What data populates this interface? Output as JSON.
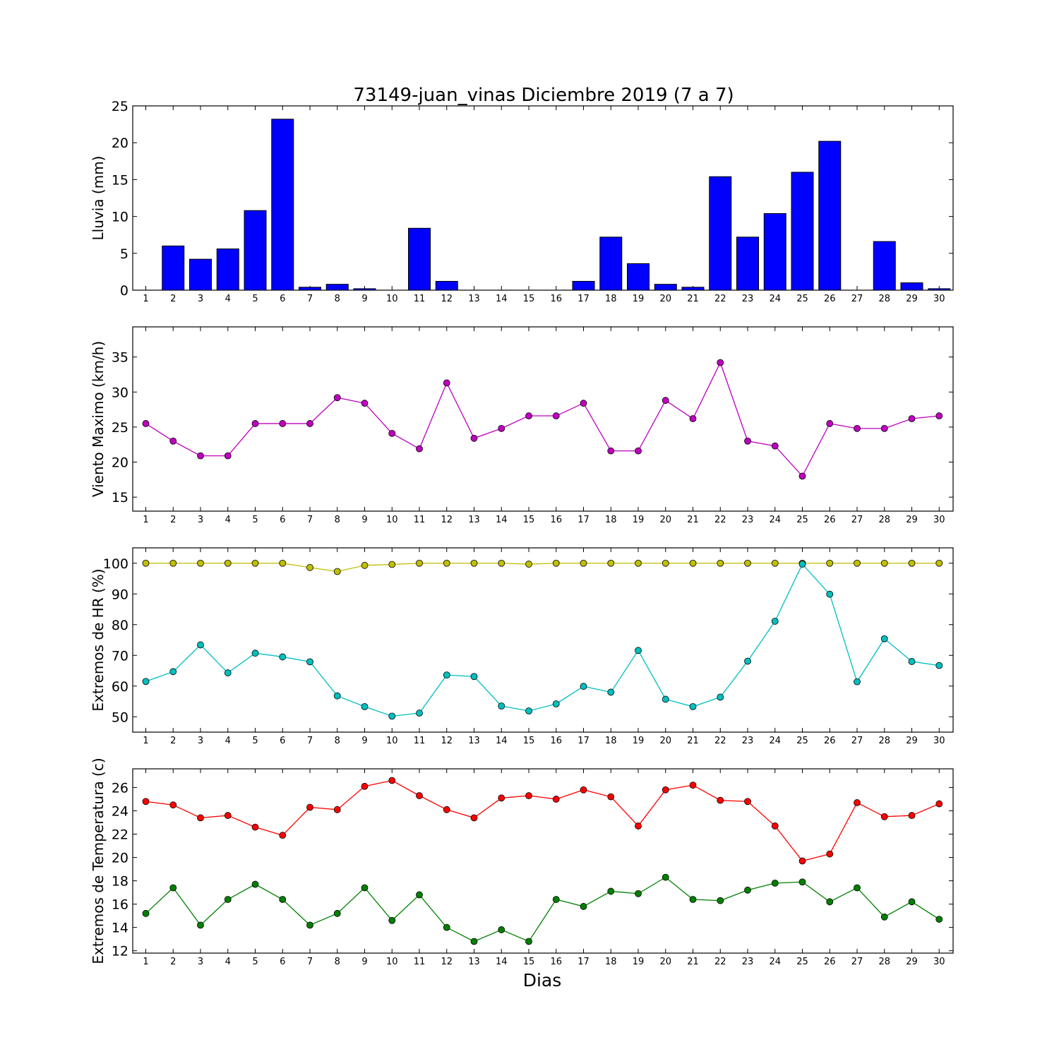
{
  "title": "73149-juan_vinas Diciembre 2019  (7 a 7)",
  "xlabel": "Dias",
  "chart_data": [
    {
      "type": "bar",
      "ylabel": "Lluvia (mm)",
      "categories": [
        "1",
        "2",
        "3",
        "4",
        "5",
        "6",
        "7",
        "8",
        "9",
        "10",
        "11",
        "12",
        "13",
        "14",
        "15",
        "16",
        "17",
        "18",
        "19",
        "20",
        "21",
        "22",
        "23",
        "24",
        "25",
        "26",
        "27",
        "28",
        "29",
        "30"
      ],
      "ylim": [
        0,
        25
      ],
      "yticks": [
        0,
        5,
        10,
        15,
        20,
        25
      ],
      "series": [
        {
          "color": "#0000ff",
          "values": [
            0,
            6.0,
            4.2,
            5.6,
            10.8,
            23.2,
            0.4,
            0.8,
            0.2,
            0,
            8.4,
            1.2,
            0,
            0,
            0,
            0,
            1.2,
            7.2,
            3.6,
            0.8,
            0.4,
            15.4,
            7.2,
            10.4,
            16.0,
            20.2,
            0,
            6.6,
            1.0,
            0.2
          ]
        }
      ]
    },
    {
      "type": "line",
      "ylabel": "Viento Maximo (km/h)",
      "categories": [
        "1",
        "2",
        "3",
        "4",
        "5",
        "6",
        "7",
        "8",
        "9",
        "10",
        "11",
        "12",
        "13",
        "14",
        "15",
        "16",
        "17",
        "18",
        "19",
        "20",
        "21",
        "22",
        "23",
        "24",
        "25",
        "26",
        "27",
        "28",
        "29",
        "30"
      ],
      "ylim": [
        13,
        39.3
      ],
      "yticks": [
        15,
        20,
        25,
        30,
        35
      ],
      "series": [
        {
          "color": "#bf00bf",
          "values": [
            25.5,
            23.0,
            20.9,
            20.9,
            25.5,
            25.5,
            25.5,
            29.2,
            28.4,
            24.1,
            21.9,
            31.3,
            23.4,
            24.8,
            26.6,
            26.6,
            28.4,
            21.6,
            21.6,
            28.8,
            26.2,
            34.2,
            23.0,
            22.3,
            18.0,
            25.5,
            24.8,
            24.8,
            26.2,
            26.6
          ]
        }
      ]
    },
    {
      "type": "line",
      "ylabel": "Extremos de HR (%)",
      "categories": [
        "1",
        "2",
        "3",
        "4",
        "5",
        "6",
        "7",
        "8",
        "9",
        "10",
        "11",
        "12",
        "13",
        "14",
        "15",
        "16",
        "17",
        "18",
        "19",
        "20",
        "21",
        "22",
        "23",
        "24",
        "25",
        "26",
        "27",
        "28",
        "29",
        "30"
      ],
      "ylim": [
        45,
        105
      ],
      "yticks": [
        50,
        60,
        70,
        80,
        90,
        100
      ],
      "series": [
        {
          "color": "#bfbf00",
          "values": [
            100,
            100,
            100,
            100,
            100,
            100,
            98.6,
            97.3,
            99.3,
            99.6,
            100,
            100,
            100,
            100,
            99.7,
            100,
            100,
            100,
            100,
            100,
            100,
            100,
            100,
            100,
            100,
            100,
            100,
            100,
            100,
            100
          ]
        },
        {
          "color": "#00bfbf",
          "values": [
            61.5,
            64.7,
            73.4,
            64.3,
            70.7,
            69.5,
            67.9,
            56.8,
            53.3,
            50.2,
            51.2,
            63.6,
            63.1,
            53.5,
            51.9,
            54.2,
            59.9,
            58.0,
            71.6,
            55.7,
            53.3,
            56.4,
            68.1,
            81.1,
            99.7,
            89.9,
            61.4,
            75.4,
            68.0,
            66.7
          ]
        }
      ]
    },
    {
      "type": "line",
      "ylabel": "Extremos de Temperatura (c)",
      "categories": [
        "1",
        "2",
        "3",
        "4",
        "5",
        "6",
        "7",
        "8",
        "9",
        "10",
        "11",
        "12",
        "13",
        "14",
        "15",
        "16",
        "17",
        "18",
        "19",
        "20",
        "21",
        "22",
        "23",
        "24",
        "25",
        "26",
        "27",
        "28",
        "29",
        "30"
      ],
      "ylim": [
        11.8,
        27.6
      ],
      "yticks": [
        12,
        14,
        16,
        18,
        20,
        22,
        24,
        26
      ],
      "series": [
        {
          "color": "#ff0000",
          "values": [
            24.8,
            24.5,
            23.4,
            23.6,
            22.6,
            21.9,
            24.3,
            24.1,
            26.1,
            26.6,
            25.3,
            24.1,
            23.4,
            25.1,
            25.3,
            25.0,
            25.8,
            25.2,
            22.7,
            25.8,
            26.2,
            24.9,
            24.8,
            22.7,
            19.7,
            20.3,
            24.7,
            23.5,
            23.6,
            24.6
          ]
        },
        {
          "color": "#008000",
          "values": [
            15.2,
            17.4,
            14.2,
            16.4,
            17.7,
            16.4,
            14.2,
            15.2,
            17.4,
            14.6,
            16.8,
            14.0,
            12.8,
            13.8,
            12.8,
            16.4,
            15.8,
            17.1,
            16.9,
            18.3,
            16.4,
            16.3,
            17.2,
            17.8,
            17.9,
            16.2,
            17.4,
            14.9,
            16.2,
            14.7
          ]
        }
      ]
    }
  ]
}
